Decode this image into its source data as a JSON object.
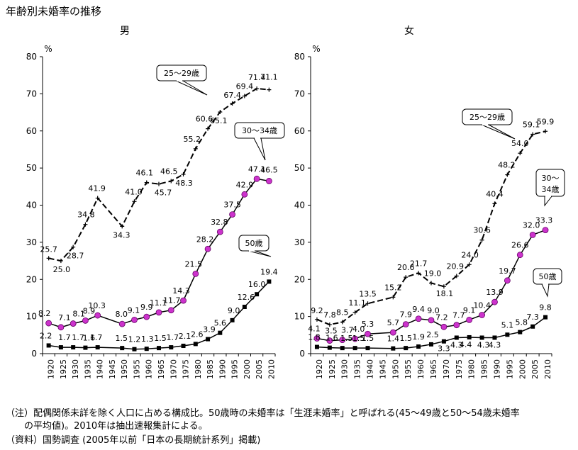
{
  "title": "年齢別未婚率の推移",
  "notes": {
    "line1": "（注）配偶関係未詳を除く人口に占める構成比。50歳時の未婚率は「生涯未婚率」と呼ばれる(45〜49歳と50〜54歳未婚率",
    "line2": "　　の平均値)。2010年は抽出速報集計による。",
    "line3": "（資料）国勢調査 (2005年以前「日本の長期統計系列」掲載)"
  },
  "colors": {
    "age25": "#000000",
    "age30": "#cc33cc",
    "age50": "#000000"
  },
  "chart_data": [
    {
      "type": "line",
      "title": "男",
      "unit": "%",
      "ylim": [
        0,
        80
      ],
      "yticks": [
        0,
        10,
        20,
        30,
        40,
        50,
        60,
        70,
        80
      ],
      "categories": [
        "1920",
        "1925",
        "1930",
        "1935",
        "1940",
        "1945",
        "1950",
        "1955",
        "1960",
        "1965",
        "1970",
        "1975",
        "1980",
        "1985",
        "1990",
        "1995",
        "2000",
        "2005",
        "2010"
      ],
      "grid": false,
      "series": [
        {
          "name": "25〜29歳",
          "x": [
            1920,
            1925,
            1930,
            1935,
            1940,
            1950,
            1955,
            1960,
            1965,
            1970,
            1975,
            1980,
            1985,
            1990,
            1995,
            2000,
            2005,
            2010
          ],
          "values": [
            25.7,
            25.0,
            28.7,
            34.8,
            41.9,
            34.3,
            41.0,
            46.1,
            45.7,
            46.5,
            48.3,
            55.2,
            60.6,
            65.1,
            67.4,
            69.4,
            71.4,
            71.1
          ]
        },
        {
          "name": "30〜34歳",
          "x": [
            1920,
            1925,
            1930,
            1935,
            1940,
            1950,
            1955,
            1960,
            1965,
            1970,
            1975,
            1980,
            1985,
            1990,
            1995,
            2000,
            2005,
            2010
          ],
          "values": [
            8.2,
            7.1,
            8.1,
            8.9,
            10.3,
            8.0,
            9.1,
            9.9,
            11.1,
            11.7,
            14.3,
            21.5,
            28.2,
            32.8,
            37.5,
            42.9,
            47.1,
            46.5
          ]
        },
        {
          "name": "50歳",
          "x": [
            1920,
            1925,
            1930,
            1935,
            1940,
            1950,
            1955,
            1960,
            1965,
            1970,
            1975,
            1980,
            1985,
            1990,
            1995,
            2000,
            2005,
            2010
          ],
          "values": [
            2.2,
            1.7,
            1.7,
            1.6,
            1.7,
            1.5,
            1.2,
            1.3,
            1.5,
            1.7,
            2.1,
            2.6,
            3.9,
            5.6,
            9.0,
            12.6,
            16.0,
            19.4
          ]
        }
      ]
    },
    {
      "type": "line",
      "title": "女",
      "unit": "%",
      "ylim": [
        0,
        80
      ],
      "yticks": [
        0,
        10,
        20,
        30,
        40,
        50,
        60,
        70,
        80
      ],
      "categories": [
        "1920",
        "1925",
        "1930",
        "1935",
        "1940",
        "1945",
        "1950",
        "1955",
        "1960",
        "1965",
        "1970",
        "1975",
        "1980",
        "1985",
        "1990",
        "1995",
        "2000",
        "2005",
        "2010"
      ],
      "grid": false,
      "series": [
        {
          "name": "25〜29歳",
          "x": [
            1920,
            1925,
            1930,
            1935,
            1940,
            1950,
            1955,
            1960,
            1965,
            1970,
            1975,
            1980,
            1985,
            1990,
            1995,
            2000,
            2005,
            2010
          ],
          "values": [
            9.2,
            7.8,
            8.5,
            11.1,
            13.5,
            15.2,
            20.6,
            21.7,
            19.0,
            18.1,
            20.9,
            24.0,
            30.6,
            40.4,
            48.2,
            54.0,
            59.1,
            59.9
          ]
        },
        {
          "name": "30〜34歳",
          "x": [
            1920,
            1925,
            1930,
            1935,
            1940,
            1950,
            1955,
            1960,
            1965,
            1970,
            1975,
            1980,
            1985,
            1990,
            1995,
            2000,
            2005,
            2010
          ],
          "values": [
            4.1,
            3.5,
            3.7,
            4.0,
            5.3,
            5.7,
            7.9,
            9.4,
            9.0,
            7.2,
            7.7,
            9.1,
            10.4,
            13.9,
            19.7,
            26.6,
            32.0,
            33.3
          ]
        },
        {
          "name": "50歳",
          "x": [
            1920,
            1925,
            1930,
            1935,
            1940,
            1950,
            1955,
            1960,
            1965,
            1970,
            1975,
            1980,
            1985,
            1990,
            1995,
            2000,
            2005,
            2010
          ],
          "values": [
            1.8,
            1.6,
            1.5,
            1.5,
            1.5,
            1.4,
            1.5,
            1.9,
            2.5,
            3.3,
            4.3,
            4.4,
            4.3,
            4.3,
            5.1,
            5.8,
            7.3,
            9.8
          ]
        }
      ]
    }
  ]
}
